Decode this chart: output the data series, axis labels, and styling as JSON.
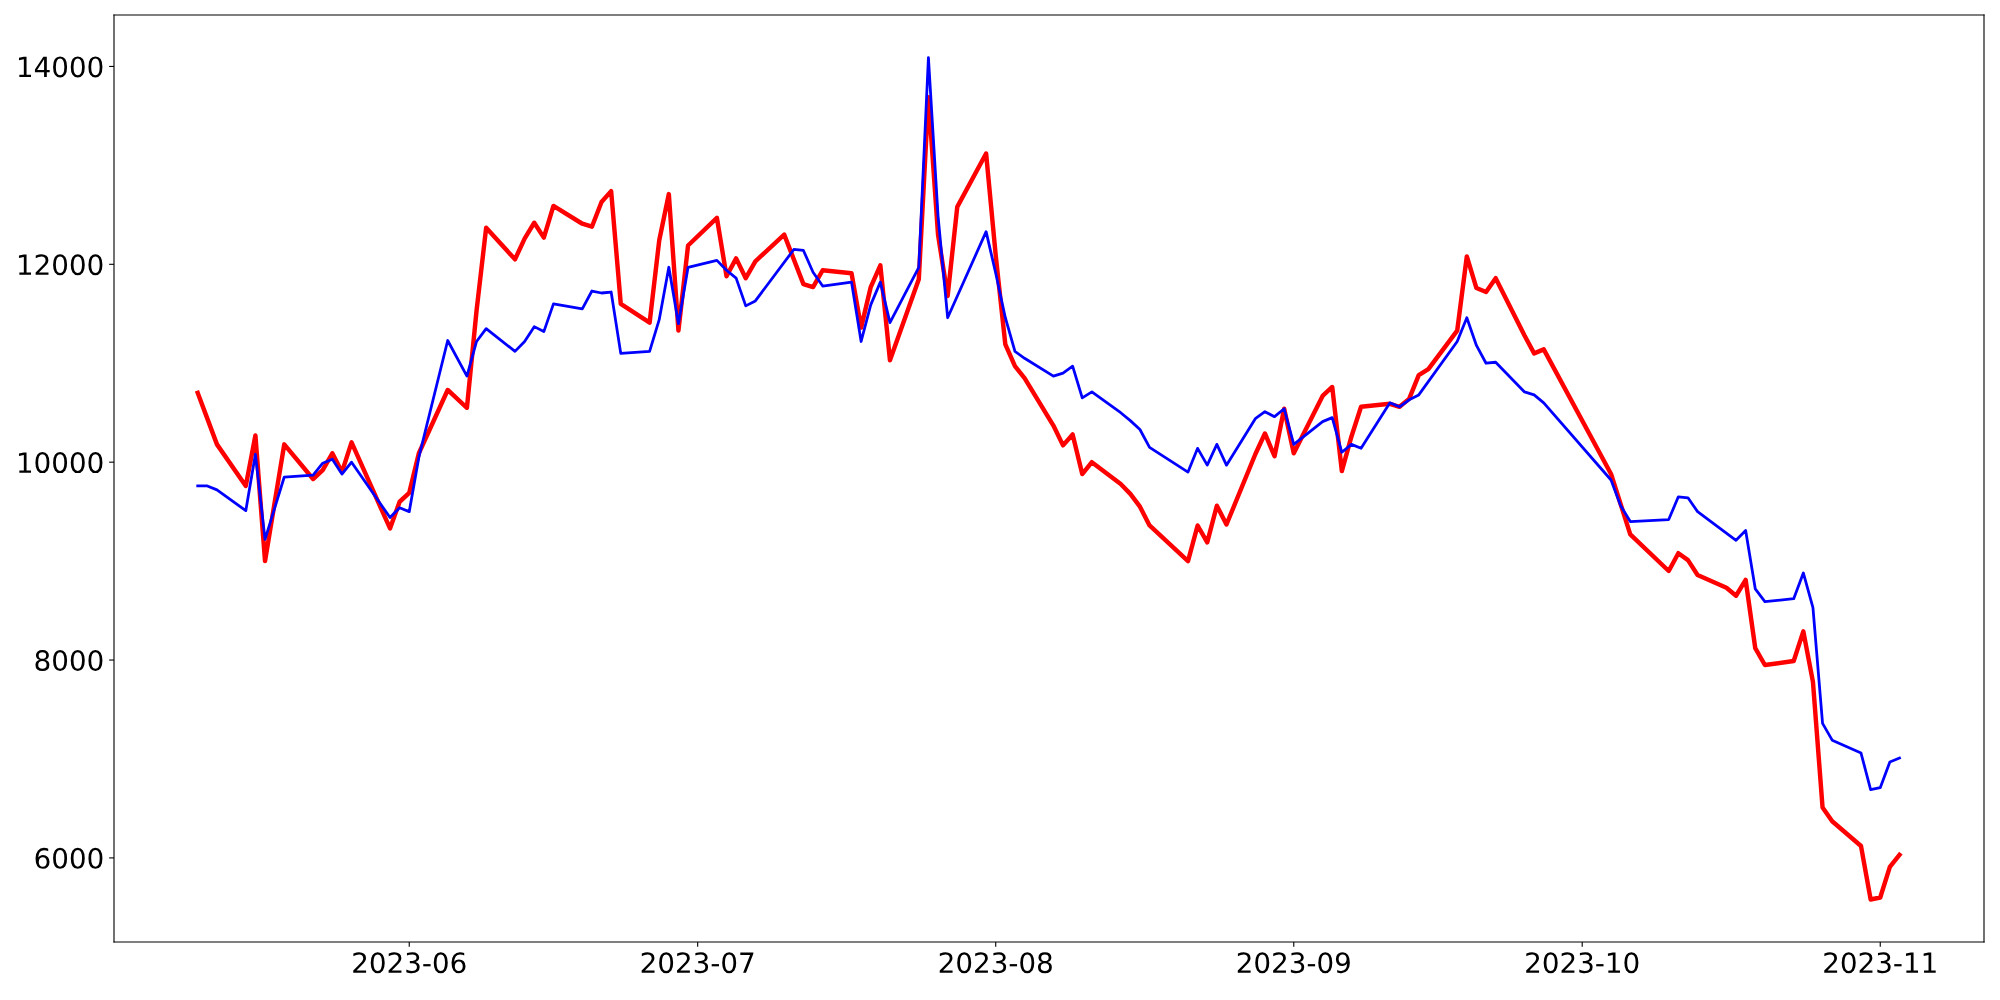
{
  "chart_data": {
    "type": "line",
    "xlim": [
      "2023-05-01T07:00",
      "2023-11-11T19:00"
    ],
    "xticks": [
      {
        "value": "2023-06-01",
        "label": "2023-06"
      },
      {
        "value": "2023-07-01",
        "label": "2023-07"
      },
      {
        "value": "2023-08-01",
        "label": "2023-08"
      },
      {
        "value": "2023-09-01",
        "label": "2023-09"
      },
      {
        "value": "2023-10-01",
        "label": "2023-10"
      },
      {
        "value": "2023-11-01",
        "label": "2023-11"
      }
    ],
    "ylim": [
      5150,
      14520
    ],
    "yticks": [
      6000,
      8000,
      10000,
      12000,
      14000
    ],
    "grid": false,
    "marker": "none",
    "line_style": "solid",
    "series": [
      {
        "color": "#ff0000",
        "x": [
          "2023-05-10",
          "2023-05-11",
          "2023-05-12",
          "2023-05-15",
          "2023-05-16",
          "2023-05-17",
          "2023-05-19",
          "2023-05-22",
          "2023-05-23",
          "2023-05-24",
          "2023-05-25",
          "2023-05-26",
          "2023-05-30",
          "2023-05-31",
          "2023-06-01",
          "2023-06-02",
          "2023-06-05",
          "2023-06-07",
          "2023-06-08",
          "2023-06-09",
          "2023-06-12",
          "2023-06-13",
          "2023-06-14",
          "2023-06-15",
          "2023-06-16",
          "2023-06-19",
          "2023-06-20",
          "2023-06-21",
          "2023-06-22",
          "2023-06-23",
          "2023-06-26",
          "2023-06-27",
          "2023-06-28",
          "2023-06-29",
          "2023-06-30",
          "2023-07-03",
          "2023-07-04",
          "2023-07-05",
          "2023-07-06",
          "2023-07-07",
          "2023-07-10",
          "2023-07-12",
          "2023-07-13",
          "2023-07-14",
          "2023-07-17",
          "2023-07-18",
          "2023-07-19",
          "2023-07-20",
          "2023-07-21",
          "2023-07-24",
          "2023-07-25",
          "2023-07-26",
          "2023-07-27",
          "2023-07-28",
          "2023-07-31",
          "2023-08-01",
          "2023-08-02",
          "2023-08-03",
          "2023-08-04",
          "2023-08-07",
          "2023-08-08",
          "2023-08-09",
          "2023-08-10",
          "2023-08-11",
          "2023-08-14",
          "2023-08-15",
          "2023-08-16",
          "2023-08-17",
          "2023-08-21",
          "2023-08-22",
          "2023-08-23",
          "2023-08-24",
          "2023-08-25",
          "2023-08-28",
          "2023-08-29",
          "2023-08-30",
          "2023-08-31",
          "2023-09-01",
          "2023-09-04",
          "2023-09-05",
          "2023-09-06",
          "2023-09-07",
          "2023-09-08",
          "2023-09-11",
          "2023-09-12",
          "2023-09-13",
          "2023-09-14",
          "2023-09-15",
          "2023-09-18",
          "2023-09-19",
          "2023-09-20",
          "2023-09-21",
          "2023-09-22",
          "2023-09-25",
          "2023-09-26",
          "2023-09-27",
          "2023-10-04",
          "2023-10-06",
          "2023-10-10",
          "2023-10-11",
          "2023-10-12",
          "2023-10-13",
          "2023-10-16",
          "2023-10-17",
          "2023-10-18",
          "2023-10-19",
          "2023-10-20",
          "2023-10-23",
          "2023-10-24",
          "2023-10-25",
          "2023-10-26",
          "2023-10-27",
          "2023-10-30",
          "2023-10-31",
          "2023-11-01",
          "2023-11-02",
          "2023-11-03"
        ],
        "values": [
          10700,
          10440,
          10180,
          9760,
          10270,
          9000,
          10180,
          9830,
          9920,
          10090,
          9900,
          10200,
          9330,
          9600,
          9690,
          10090,
          10730,
          10550,
          11530,
          12370,
          12050,
          12260,
          12420,
          12270,
          12590,
          12410,
          12380,
          12630,
          12740,
          11600,
          11410,
          12240,
          12710,
          11330,
          12190,
          12470,
          11880,
          12060,
          11860,
          12030,
          12300,
          11800,
          11770,
          11940,
          11910,
          11360,
          11770,
          11990,
          11030,
          11850,
          13690,
          12300,
          11680,
          12580,
          13120,
          12090,
          11190,
          10970,
          10850,
          10370,
          10170,
          10280,
          9880,
          10000,
          9780,
          9680,
          9550,
          9360,
          9000,
          9360,
          9190,
          9560,
          9370,
          10080,
          10290,
          10060,
          10540,
          10090,
          10670,
          10760,
          9910,
          10260,
          10560,
          10590,
          10560,
          10640,
          10880,
          10940,
          11330,
          12080,
          11760,
          11720,
          11860,
          11280,
          11100,
          11140,
          9880,
          9270,
          8900,
          9080,
          9010,
          8860,
          8730,
          8650,
          8810,
          8120,
          7950,
          7990,
          8290,
          7780,
          6510,
          6370,
          6120,
          5580,
          5600,
          5910,
          6030
        ]
      },
      {
        "color": "#0000ff",
        "x": [
          "2023-05-10",
          "2023-05-11",
          "2023-05-12",
          "2023-05-15",
          "2023-05-16",
          "2023-05-17",
          "2023-05-19",
          "2023-05-22",
          "2023-05-23",
          "2023-05-24",
          "2023-05-25",
          "2023-05-26",
          "2023-05-30",
          "2023-05-31",
          "2023-06-01",
          "2023-06-02",
          "2023-06-05",
          "2023-06-07",
          "2023-06-08",
          "2023-06-09",
          "2023-06-12",
          "2023-06-13",
          "2023-06-14",
          "2023-06-15",
          "2023-06-16",
          "2023-06-19",
          "2023-06-20",
          "2023-06-21",
          "2023-06-22",
          "2023-06-23",
          "2023-06-26",
          "2023-06-27",
          "2023-06-28",
          "2023-06-29",
          "2023-06-30",
          "2023-07-03",
          "2023-07-04",
          "2023-07-05",
          "2023-07-06",
          "2023-07-07",
          "2023-07-11",
          "2023-07-12",
          "2023-07-13",
          "2023-07-14",
          "2023-07-17",
          "2023-07-18",
          "2023-07-19",
          "2023-07-20",
          "2023-07-21",
          "2023-07-24",
          "2023-07-25",
          "2023-07-26",
          "2023-07-27",
          "2023-07-31",
          "2023-08-01",
          "2023-08-02",
          "2023-08-03",
          "2023-08-04",
          "2023-08-07",
          "2023-08-08",
          "2023-08-09",
          "2023-08-10",
          "2023-08-11",
          "2023-08-14",
          "2023-08-15",
          "2023-08-16",
          "2023-08-17",
          "2023-08-21",
          "2023-08-22",
          "2023-08-23",
          "2023-08-24",
          "2023-08-25",
          "2023-08-28",
          "2023-08-29",
          "2023-08-30",
          "2023-08-31",
          "2023-09-01",
          "2023-09-04",
          "2023-09-05",
          "2023-09-06",
          "2023-09-07",
          "2023-09-08",
          "2023-09-11",
          "2023-09-12",
          "2023-09-13",
          "2023-09-14",
          "2023-09-18",
          "2023-09-19",
          "2023-09-20",
          "2023-09-21",
          "2023-09-22",
          "2023-09-25",
          "2023-09-26",
          "2023-09-27",
          "2023-10-04",
          "2023-10-05",
          "2023-10-06",
          "2023-10-10",
          "2023-10-11",
          "2023-10-12",
          "2023-10-13",
          "2023-10-17",
          "2023-10-18",
          "2023-10-19",
          "2023-10-20",
          "2023-10-23",
          "2023-10-24",
          "2023-10-25",
          "2023-10-26",
          "2023-10-27",
          "2023-10-30",
          "2023-10-31",
          "2023-11-01",
          "2023-11-02",
          "2023-11-03"
        ],
        "values": [
          9760,
          9760,
          9720,
          9510,
          10080,
          9220,
          9850,
          9870,
          9990,
          10030,
          9880,
          10000,
          9440,
          9540,
          9500,
          10050,
          11230,
          10870,
          11220,
          11350,
          11120,
          11220,
          11370,
          11320,
          11600,
          11550,
          11730,
          11710,
          11720,
          11100,
          11120,
          11440,
          11970,
          11400,
          11970,
          12040,
          11940,
          11860,
          11580,
          11630,
          12150,
          12140,
          11920,
          11780,
          11820,
          11220,
          11590,
          11820,
          11410,
          11970,
          14090,
          12490,
          11460,
          12330,
          11910,
          11460,
          11120,
          11050,
          10870,
          10900,
          10970,
          10650,
          10710,
          10500,
          10420,
          10330,
          10150,
          9900,
          10140,
          9970,
          10180,
          9970,
          10440,
          10510,
          10460,
          10540,
          10180,
          10410,
          10450,
          10100,
          10180,
          10140,
          10600,
          10560,
          10630,
          10680,
          11220,
          11460,
          11180,
          11000,
          11010,
          10710,
          10680,
          10600,
          9820,
          9560,
          9400,
          9420,
          9650,
          9640,
          9500,
          9210,
          9310,
          8720,
          8590,
          8620,
          8880,
          8530,
          7360,
          7190,
          7060,
          6690,
          6710,
          6970,
          7010
        ]
      }
    ]
  }
}
